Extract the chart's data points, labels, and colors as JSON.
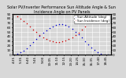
{
  "title": "Solar PV/Inverter Performance Sun Altitude Angle & Sun Incidence Angle on PV Panels",
  "legend_labels": [
    "Sun Altitude (deg)",
    "Sun Incidence (deg)"
  ],
  "legend_colors": [
    "#0000cc",
    "#cc0000"
  ],
  "background_color": "#d8d8d8",
  "grid_color": "#ffffff",
  "ylim": [
    0,
    90
  ],
  "yticks": [
    0,
    10,
    20,
    30,
    40,
    50,
    60,
    70,
    80,
    90
  ],
  "xlim": [
    4.3,
    19.5
  ],
  "time_hours": [
    4.5,
    5.0,
    5.5,
    6.0,
    6.5,
    7.0,
    7.5,
    8.0,
    8.5,
    9.0,
    9.5,
    10.0,
    10.5,
    11.0,
    11.5,
    12.0,
    12.5,
    13.0,
    13.5,
    14.0,
    14.5,
    15.0,
    15.5,
    16.0,
    16.5,
    17.0,
    17.5,
    18.0,
    18.5,
    19.0
  ],
  "altitude_data": [
    0,
    2,
    5,
    9,
    14,
    20,
    27,
    34,
    41,
    48,
    54,
    59,
    63,
    66,
    67,
    67,
    65,
    62,
    57,
    51,
    45,
    38,
    30,
    23,
    16,
    10,
    5,
    2,
    0,
    0
  ],
  "incidence_data": [
    90,
    85,
    80,
    75,
    70,
    63,
    56,
    50,
    44,
    38,
    34,
    31,
    29,
    28,
    28,
    29,
    31,
    34,
    38,
    43,
    49,
    55,
    63,
    71,
    78,
    85,
    90,
    90,
    90,
    90
  ],
  "title_fontsize": 3.5,
  "tick_fontsize": 3.0,
  "legend_fontsize": 3.0,
  "dot_size": 1.2
}
